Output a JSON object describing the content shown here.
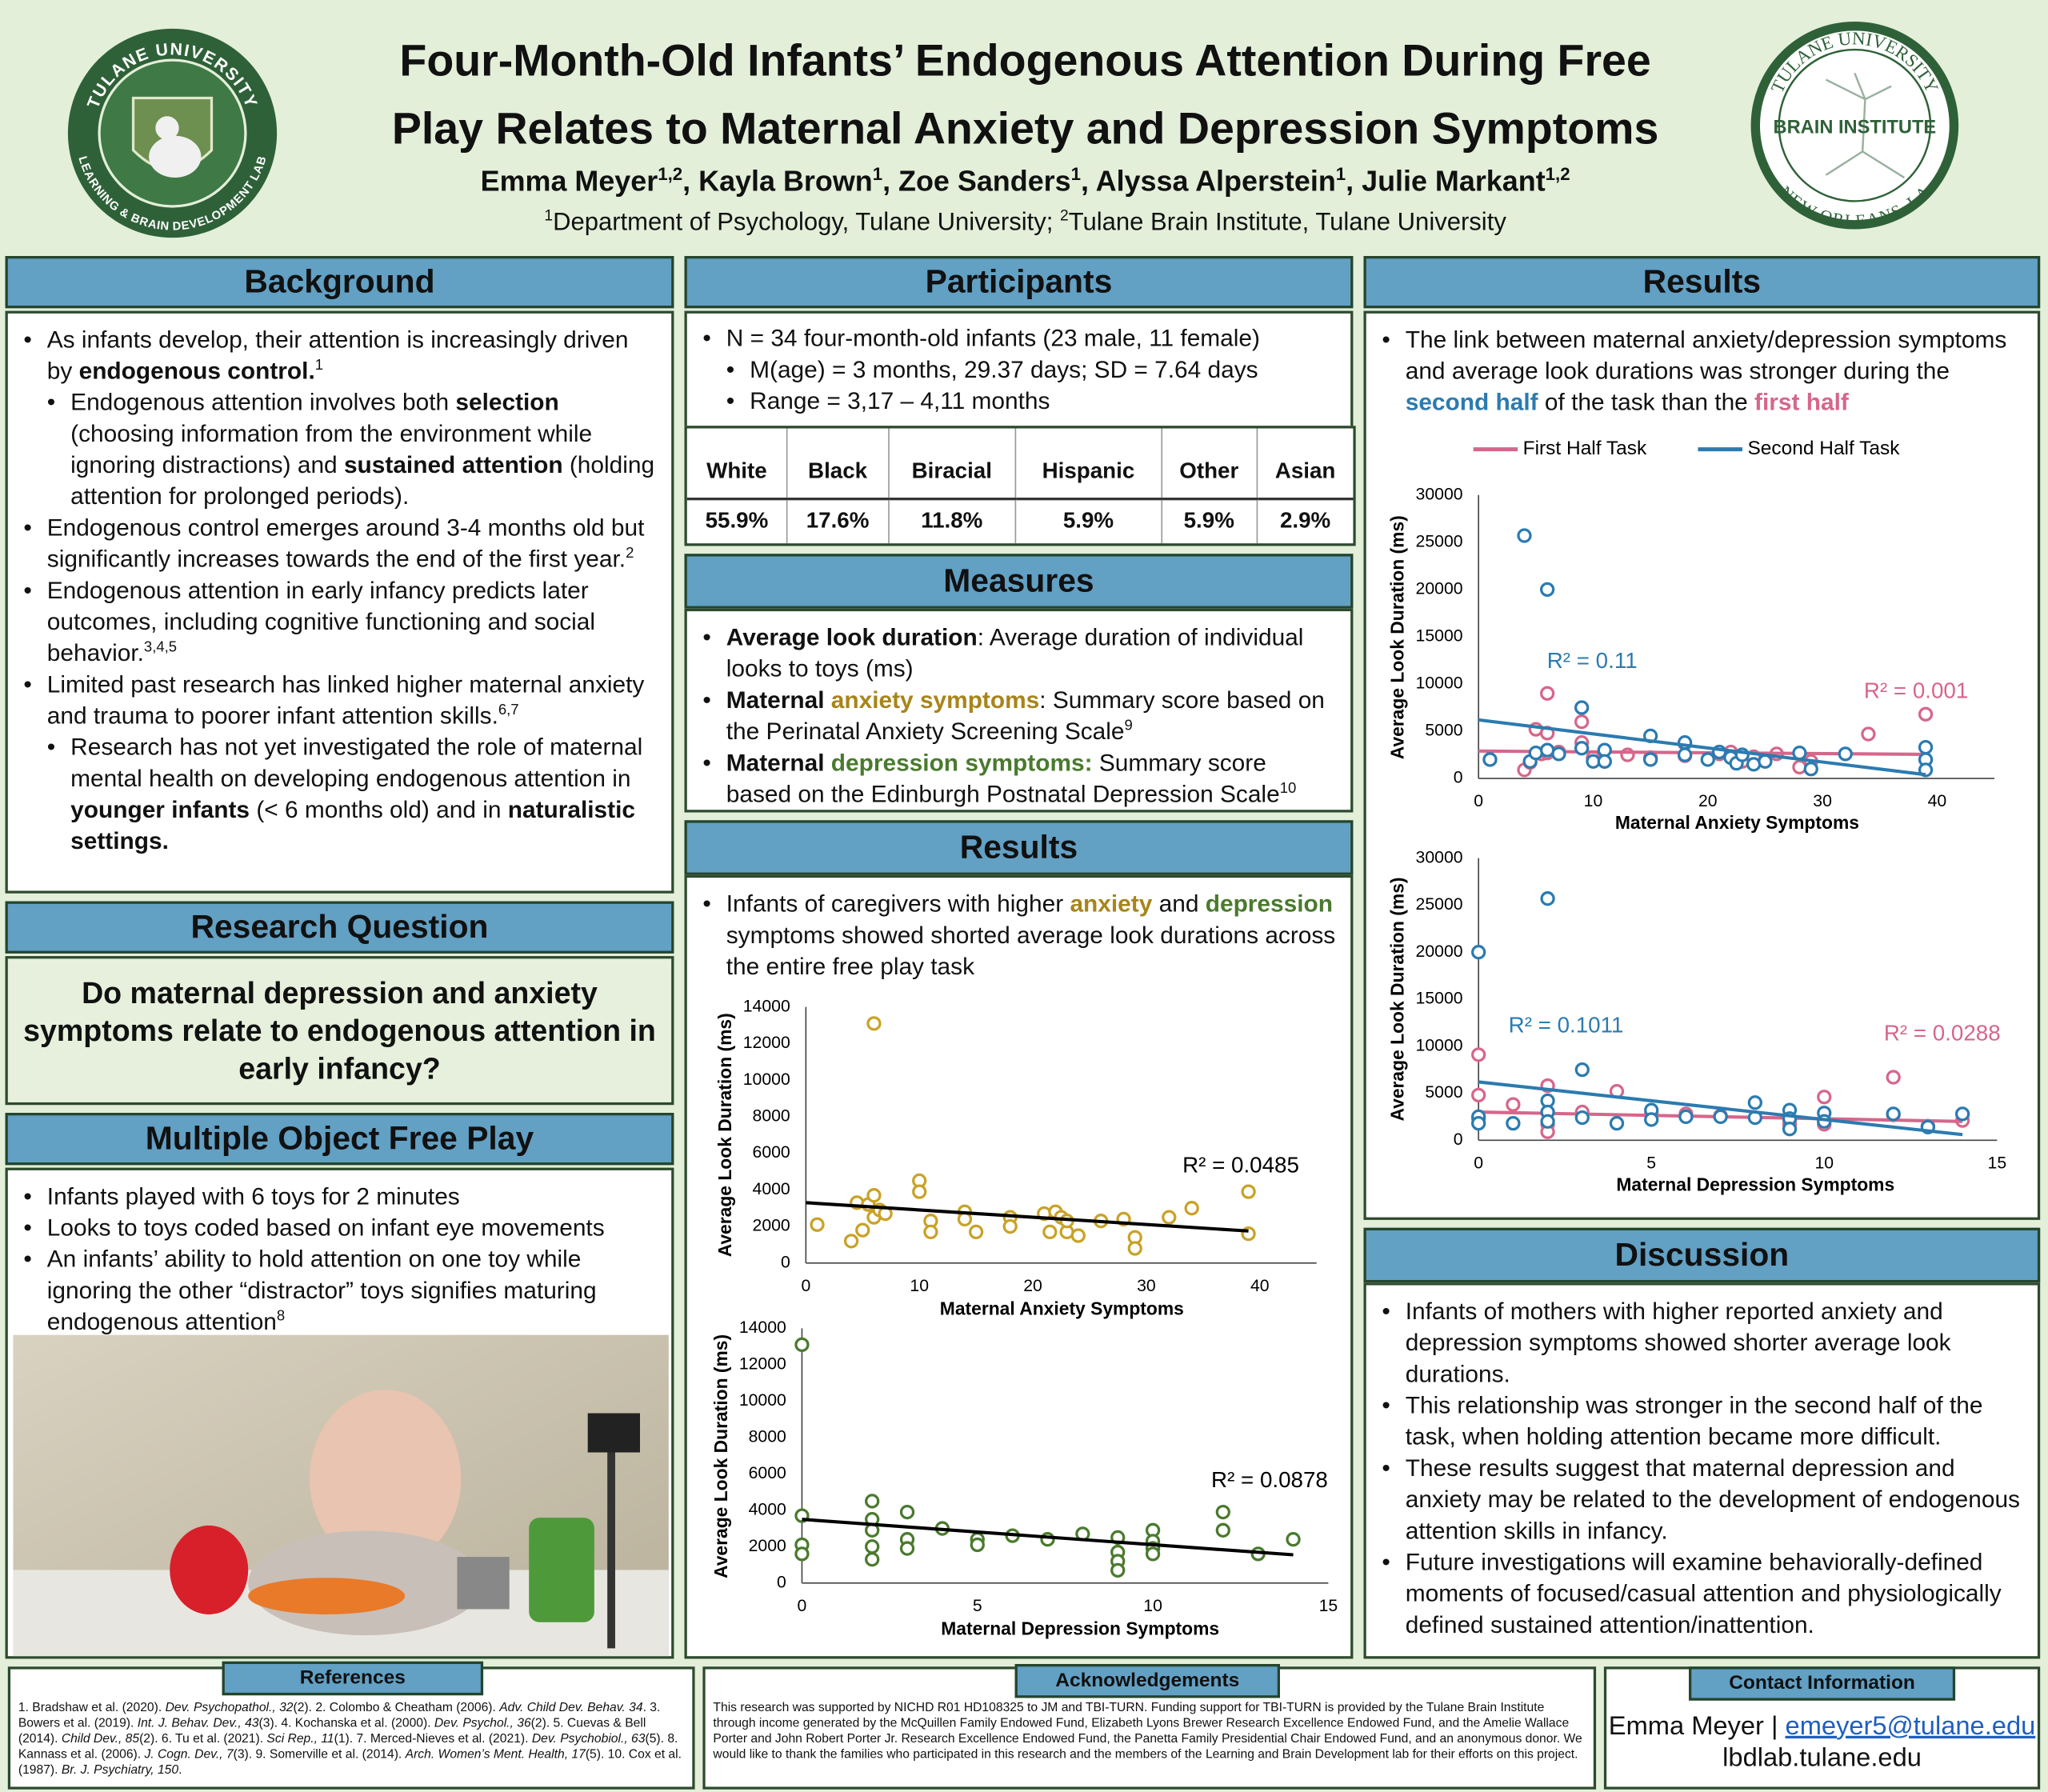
{
  "logos": {
    "left_top": "TULANE UNIVERSITY",
    "left_bottom": "LEARNING & BRAIN DEVELOPMENT LAB",
    "right_top": "TULANE UNIVERSITY",
    "right_center": "BRAIN INSTITUTE",
    "right_bottom": "NEW ORLEANS, LA"
  },
  "header": {
    "title_lines": [
      "Four-Month-Old Infants’ Endogenous Attention During Free",
      "Play Relates to Maternal Anxiety and Depression Symptoms"
    ],
    "authors": [
      {
        "text": "Emma Meyer",
        "style": "plain"
      },
      {
        "text": "1,2",
        "style": "sup"
      },
      {
        "text": ", Kayla Brown",
        "style": "plain"
      },
      {
        "text": "1",
        "style": "sup"
      },
      {
        "text": ", Zoe Sanders",
        "style": "plain"
      },
      {
        "text": "1",
        "style": "sup"
      },
      {
        "text": ", Alyssa Alperstein",
        "style": "plain"
      },
      {
        "text": "1",
        "style": "sup"
      },
      {
        "text": ", Julie Markant",
        "style": "plain"
      },
      {
        "text": "1,2",
        "style": "sup"
      }
    ],
    "affiliation": [
      {
        "text": "1",
        "style": "sup"
      },
      {
        "text": "Department of Psychology, Tulane University; ",
        "style": "plain"
      },
      {
        "text": "2",
        "style": "sup"
      },
      {
        "text": "Tulane Brain Institute, Tulane University",
        "style": "plain"
      }
    ]
  },
  "background": {
    "title": "Background",
    "items": [
      {
        "level": 0,
        "parts": [
          "As infants develop, their attention is increasingly driven by ",
          {
            "text": "endogenous control.",
            "style": "bold"
          },
          {
            "text": "1",
            "style": "sup"
          }
        ]
      },
      {
        "level": 1,
        "parts": [
          "Endogenous attention involves both ",
          {
            "text": "selection",
            "style": "bold"
          },
          " (choosing information from the environment while ignoring distractions) and ",
          {
            "text": "sustained attention",
            "style": "bold"
          },
          " (holding attention for prolonged periods)."
        ]
      },
      {
        "level": 0,
        "parts": [
          "Endogenous control emerges around 3-4 months old but significantly increases towards the end of the first year.",
          {
            "text": "2",
            "style": "sup"
          }
        ]
      },
      {
        "level": 0,
        "parts": [
          "Endogenous attention in early infancy predicts later outcomes, including cognitive functioning and social behavior.",
          {
            "text": "3,4,5",
            "style": "sup"
          }
        ]
      },
      {
        "level": 0,
        "parts": [
          "Limited past research has linked higher maternal anxiety and trauma to poorer infant attention skills.",
          {
            "text": "6,7",
            "style": "sup"
          }
        ]
      },
      {
        "level": 1,
        "parts": [
          "Research has not yet investigated the role of maternal mental health on developing endogenous attention in ",
          {
            "text": "younger infants",
            "style": "bold"
          },
          " (< 6 months old) and in ",
          {
            "text": "naturalistic settings.",
            "style": "bold"
          }
        ]
      }
    ]
  },
  "research_question": {
    "title": "Research Question",
    "text": "Do maternal depression and anxiety symptoms relate to endogenous attention in early infancy?"
  },
  "free_play": {
    "title": "Multiple Object Free Play",
    "items": [
      {
        "level": 0,
        "parts": [
          "Infants played with 6 toys for 2 minutes"
        ]
      },
      {
        "level": 0,
        "parts": [
          "Looks to toys coded based on infant eye movements"
        ]
      },
      {
        "level": 0,
        "parts": [
          "An infants’ ability to hold attention on one toy while ignoring the other “distractor” toys signifies maturing endogenous attention",
          {
            "text": "8",
            "style": "sup"
          }
        ]
      }
    ]
  },
  "participants": {
    "title": "Participants",
    "items": [
      {
        "level": 0,
        "parts": [
          "N = 34 four-month-old infants (23 male, 11 female)"
        ]
      },
      {
        "level": 1,
        "parts": [
          "M(age) = 3 months, 29.37 days; SD = 7.64 days"
        ]
      },
      {
        "level": 1,
        "parts": [
          "Range = 3,17 – 4,11 months"
        ]
      }
    ],
    "table": {
      "header": [
        "White",
        "Black",
        "Biracial",
        "Hispanic",
        "Other",
        "Asian"
      ],
      "row": [
        "55.9%",
        "17.6%",
        "11.8%",
        "5.9%",
        "5.9%",
        "2.9%"
      ]
    }
  },
  "measures": {
    "title": "Measures",
    "items": [
      {
        "level": 0,
        "parts": [
          {
            "text": "Average look duration",
            "style": "bold"
          },
          ": Average duration of individual looks to toys (ms)"
        ]
      },
      {
        "level": 0,
        "parts": [
          {
            "text": "Maternal ",
            "style": "bold"
          },
          {
            "text": "anxiety symptoms",
            "style": "gold"
          },
          ": Summary score based on the Perinatal Anxiety Screening Scale",
          {
            "text": "9",
            "style": "sup"
          }
        ]
      },
      {
        "level": 0,
        "parts": [
          {
            "text": "Maternal ",
            "style": "bold"
          },
          {
            "text": "depression symptoms:",
            "style": "green"
          },
          " Summary score based on the Edinburgh Postnatal Depression Scale",
          {
            "text": "10",
            "style": "sup"
          }
        ]
      }
    ]
  },
  "results_middle": {
    "title": "Results",
    "items": [
      {
        "level": 0,
        "parts": [
          "Infants of caregivers with higher ",
          {
            "text": "anxiety",
            "style": "gold"
          },
          " and ",
          {
            "text": "depression",
            "style": "green"
          },
          " symptoms showed shorted average look durations across the entire free play task"
        ]
      }
    ]
  },
  "results_right": {
    "title": "Results",
    "items": [
      {
        "level": 0,
        "parts": [
          "The link between maternal anxiety/depression symptoms and average look durations was stronger during the ",
          {
            "text": "second half",
            "style": "blue"
          },
          " of the task than the ",
          {
            "text": "first half",
            "style": "pink"
          }
        ]
      }
    ]
  },
  "discussion": {
    "title": "Discussion",
    "items": [
      {
        "level": 0,
        "parts": [
          "Infants of mothers with higher reported anxiety and depression symptoms showed shorter average look durations."
        ]
      },
      {
        "level": 0,
        "parts": [
          "This relationship was stronger in the second half of the task, when holding attention became more difficult."
        ]
      },
      {
        "level": 0,
        "parts": [
          "These results suggest that maternal depression and anxiety may be related to the development of endogenous attention skills in infancy."
        ]
      },
      {
        "level": 0,
        "parts": [
          "Future investigations will examine behaviorally-defined moments of focused/casual attention and physiologically defined sustained attention/inattention."
        ]
      }
    ]
  },
  "references": {
    "title": "References",
    "parts": [
      "1. Bradshaw et al. (2020). ",
      {
        "text": "Dev. Psychopathol., 32",
        "style": "italic"
      },
      "(2). 2. Colombo & Cheatham (2006). ",
      {
        "text": "Adv. Child Dev. Behav. 34",
        "style": "italic"
      },
      ". 3. Bowers et al. (2019). ",
      {
        "text": "Int. J. Behav. Dev., 43",
        "style": "italic"
      },
      "(3). 4. Kochanska et al. (2000). ",
      {
        "text": "Dev. Psychol., 36",
        "style": "italic"
      },
      "(2). 5. Cuevas & Bell (2014). ",
      {
        "text": "Child Dev., 85",
        "style": "italic"
      },
      "(2). 6. Tu et al. (2021). ",
      {
        "text": "Sci Rep., 11",
        "style": "italic"
      },
      "(1). 7. Merced-Nieves et al. (2021). ",
      {
        "text": "Dev. Psychobiol., 63",
        "style": "italic"
      },
      "(5). 8. Kannass et al. (2006). ",
      {
        "text": "J. Cogn. Dev., 7",
        "style": "italic"
      },
      "(3). 9. Somerville et al. (2014). ",
      {
        "text": "Arch. Women’s Ment. Health, 17",
        "style": "italic"
      },
      "(5). 10. Cox et al. (1987). ",
      {
        "text": "Br. J. Psychiatry, 150",
        "style": "italic"
      },
      "."
    ]
  },
  "acknowledgements": {
    "title": "Acknowledgements",
    "text": "This research was supported by NICHD R01 HD108325 to JM and TBI-TURN. Funding support for TBI-TURN is provided by the Tulane Brain Institute through income generated by the McQuillen Family Endowed Fund, Elizabeth Lyons Brewer Research Excellence Endowed Fund, and the Amelie Wallace Porter and John Robert Porter Jr. Research Excellence Endowed Fund, the Panetta Family Presidential Chair Endowed Fund, and an anonymous donor. We would like to thank the families who participated in this research and the members of the Learning and Brain Development lab for their efforts on this project."
  },
  "contact": {
    "title": "Contact Information",
    "line1": [
      "Emma Meyer | ",
      {
        "text": "emeyer5@tulane.edu",
        "style": "link"
      }
    ],
    "line2": "lbdlab.tulane.edu"
  },
  "chart_data": [
    {
      "type": "scatter",
      "x_label": "Maternal Anxiety Symptoms",
      "y_label": "Average Look Duration (ms)",
      "xlim": [
        0,
        45
      ],
      "xticks": [
        0,
        10,
        20,
        30,
        40
      ],
      "ylim": [
        0,
        14000
      ],
      "yticks": [
        0,
        2000,
        4000,
        6000,
        8000,
        10000,
        12000,
        14000
      ],
      "series": [
        {
          "color": "#c9a227",
          "x": [
            1,
            4,
            4.5,
            5,
            5.5,
            6,
            6,
            6,
            6.5,
            7,
            10,
            10,
            11,
            11,
            14,
            14,
            15,
            18,
            18,
            21,
            21.5,
            22,
            22.5,
            23,
            23,
            24,
            26,
            28,
            29,
            29,
            32,
            34,
            39,
            39
          ],
          "y": [
            2100,
            1200,
            3300,
            1800,
            3200,
            13100,
            3700,
            2500,
            2900,
            2700,
            4500,
            3900,
            2300,
            1700,
            2800,
            2400,
            1700,
            2500,
            2000,
            2700,
            1700,
            2800,
            2500,
            1700,
            2300,
            1500,
            2300,
            2400,
            1400,
            800,
            2500,
            3000,
            3900,
            1600
          ],
          "trend": {
            "color": "#000000",
            "x": [
              0,
              39
            ],
            "y": [
              3300,
              1750
            ]
          },
          "r2_label": "R² = 0.0485"
        }
      ]
    },
    {
      "type": "scatter",
      "x_label": "Maternal Depression Symptoms",
      "y_label": "Average Look Duration (ms)",
      "xlim": [
        0,
        15
      ],
      "xticks": [
        0,
        5,
        10,
        15
      ],
      "ylim": [
        0,
        14000
      ],
      "yticks": [
        0,
        2000,
        4000,
        6000,
        8000,
        10000,
        12000,
        14000
      ],
      "series": [
        {
          "color": "#4a7a2e",
          "x": [
            0,
            0,
            0,
            0,
            2,
            2,
            2,
            2,
            2,
            3,
            3,
            3,
            4,
            5,
            5,
            6,
            7,
            8,
            9,
            9,
            9,
            9,
            10,
            10,
            10,
            10,
            12,
            12,
            13,
            14
          ],
          "y": [
            13100,
            3700,
            2100,
            1600,
            4500,
            3500,
            2900,
            2000,
            1300,
            3900,
            2400,
            1900,
            3000,
            2400,
            2100,
            2600,
            2400,
            2700,
            2500,
            1700,
            1200,
            700,
            2900,
            2300,
            1900,
            1600,
            3900,
            2900,
            1600,
            2400
          ],
          "trend": {
            "color": "#000000",
            "x": [
              0,
              14
            ],
            "y": [
              3500,
              1550
            ]
          },
          "r2_label": "R² = 0.0878"
        }
      ]
    },
    {
      "type": "scatter",
      "x_label": "Maternal Anxiety Symptoms",
      "y_label": "Average Look Duration (ms)",
      "legend": "top",
      "xlim": [
        0,
        45
      ],
      "xticks": [
        0,
        10,
        20,
        30,
        40
      ],
      "ylim": [
        0,
        30000
      ],
      "yticks": [
        0,
        5000,
        10000,
        15000,
        20000,
        25000,
        30000
      ],
      "series": [
        {
          "name": "First Half Task",
          "color": "#d6668a",
          "x": [
            1,
            4,
            4.5,
            5,
            5.5,
            6,
            6,
            6,
            7,
            9,
            9,
            10,
            11,
            13,
            15,
            18,
            18,
            21,
            22,
            23,
            24,
            26,
            28,
            29,
            34,
            39,
            39
          ],
          "y": [
            2000,
            900,
            1700,
            5200,
            2600,
            9000,
            4800,
            2700,
            2800,
            3800,
            6000,
            2200,
            1800,
            2500,
            2200,
            3700,
            2400,
            2600,
            2800,
            1800,
            2300,
            2600,
            1200,
            1800,
            4700,
            6800,
            2000
          ],
          "trend": {
            "color": "#d6668a",
            "x": [
              0,
              39
            ],
            "y": [
              2900,
              2550
            ]
          },
          "r2_label": "R² = 0.001"
        },
        {
          "name": "Second Half Task",
          "color": "#2b7bb0",
          "x": [
            1,
            4,
            6,
            4.5,
            5,
            6,
            7,
            9,
            9,
            10,
            11,
            11,
            15,
            15,
            18,
            18,
            20,
            21,
            22,
            22.5,
            23,
            24,
            25,
            28,
            29,
            32,
            39,
            39,
            39
          ],
          "y": [
            2000,
            25700,
            20000,
            1800,
            2700,
            3000,
            2600,
            7500,
            3200,
            1800,
            3000,
            1800,
            4500,
            2000,
            3800,
            2500,
            2000,
            2800,
            2200,
            1600,
            2500,
            1500,
            1800,
            2700,
            1000,
            2600,
            3300,
            2000,
            900
          ],
          "trend": {
            "color": "#2b7bb0",
            "x": [
              0,
              39
            ],
            "y": [
              6200,
              400
            ]
          },
          "r2_label": "R² = 0.11"
        }
      ]
    },
    {
      "type": "scatter",
      "x_label": "Maternal Depression Symptoms",
      "y_label": "Average Look Duration (ms)",
      "xlim": [
        0,
        15
      ],
      "xticks": [
        0,
        5,
        10,
        15
      ],
      "ylim": [
        0,
        30000
      ],
      "yticks": [
        0,
        5000,
        10000,
        15000,
        20000,
        25000,
        30000
      ],
      "series": [
        {
          "color": "#d6668a",
          "x": [
            0,
            0,
            0,
            1,
            2,
            2,
            2,
            2,
            3,
            4,
            5,
            6,
            7,
            9,
            9,
            10,
            10,
            12,
            12,
            13,
            14
          ],
          "y": [
            9100,
            4800,
            2300,
            3800,
            5800,
            3000,
            1700,
            900,
            3000,
            5200,
            2800,
            2800,
            2600,
            2200,
            1700,
            4600,
            1700,
            6700,
            2700,
            1500,
            2100
          ],
          "trend": {
            "color": "#d6668a",
            "x": [
              0,
              14
            ],
            "y": [
              3000,
              2000
            ]
          },
          "r2_label": "R² = 0.0288"
        },
        {
          "color": "#2b7bb0",
          "x": [
            0,
            0,
            0,
            1,
            2,
            2,
            2,
            2,
            3,
            3,
            4,
            5,
            5,
            6,
            7,
            8,
            8,
            9,
            9,
            9,
            10,
            10,
            12,
            13,
            14
          ],
          "y": [
            20000,
            2500,
            1800,
            1800,
            25700,
            4200,
            3000,
            2000,
            7500,
            2400,
            1800,
            3200,
            2200,
            2500,
            2500,
            4000,
            2400,
            3200,
            2300,
            1200,
            2900,
            2000,
            2800,
            1400,
            2800
          ],
          "trend": {
            "color": "#2b7bb0",
            "x": [
              0,
              14
            ],
            "y": [
              6200,
              600
            ]
          },
          "r2_label": "R² = 0.1011"
        }
      ]
    }
  ]
}
